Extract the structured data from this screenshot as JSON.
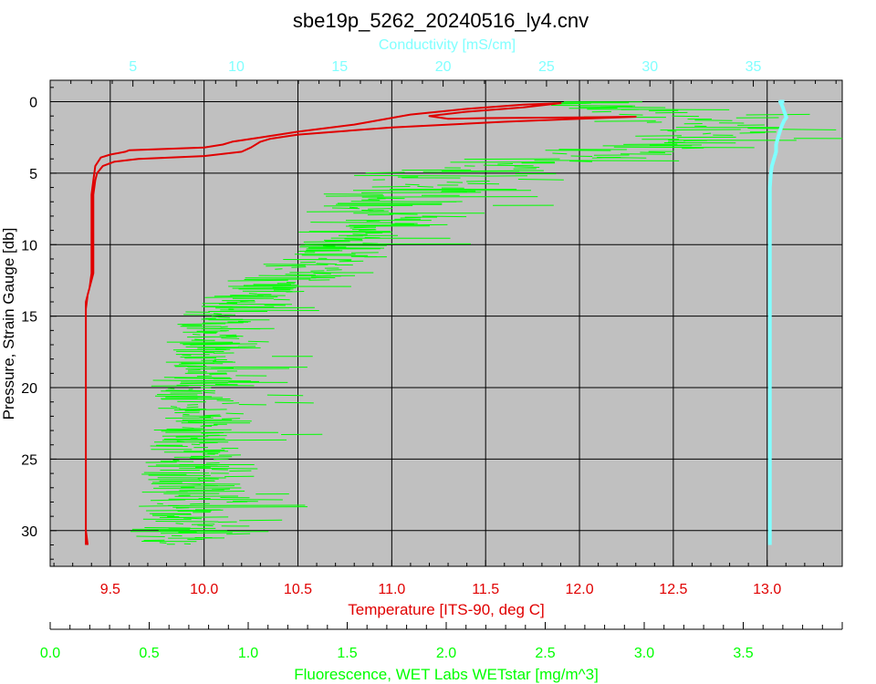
{
  "chart_data": {
    "type": "line",
    "title": "sbe19p_5262_20240516_ly4.cnv",
    "y_axis": {
      "label": "Pressure, Strain Gauge [db]",
      "range": [
        -1.5,
        32.5
      ],
      "inverted": true,
      "ticks": [
        0,
        5,
        10,
        15,
        20,
        25,
        30
      ],
      "tick_labels": [
        "0",
        "5",
        "10",
        "15",
        "20",
        "25",
        "30"
      ]
    },
    "axes": {
      "conductivity": {
        "label": "Conductivity [mS/cm]",
        "position": "top",
        "color": "#80ffff",
        "range": [
          1.0,
          39.3
        ],
        "ticks": [
          5,
          10,
          15,
          20,
          25,
          30,
          35
        ],
        "tick_labels": [
          "5",
          "10",
          "15",
          "20",
          "25",
          "30",
          "35"
        ]
      },
      "temperature": {
        "label": "Temperature [ITS-90, deg C]",
        "position": "bottom",
        "color": "#e00000",
        "range": [
          9.18,
          13.4
        ],
        "ticks": [
          9.5,
          10.0,
          10.5,
          11.0,
          11.5,
          12.0,
          12.5,
          13.0
        ],
        "tick_labels": [
          "9.5",
          "10.0",
          "10.5",
          "11.0",
          "11.5",
          "12.0",
          "12.5",
          "13.0"
        ]
      },
      "fluorescence": {
        "label": "Fluorescence, WET Labs WETstar [mg/m^3]",
        "position": "bottom-secondary",
        "color": "#00ff00",
        "range": [
          0.0,
          4.0
        ],
        "ticks": [
          0.0,
          0.5,
          1.0,
          1.5,
          2.0,
          2.5,
          3.0,
          3.5
        ],
        "tick_labels": [
          "0.0",
          "0.5",
          "1.0",
          "1.5",
          "2.0",
          "2.5",
          "3.0",
          "3.5"
        ]
      }
    },
    "grid": true,
    "series": [
      {
        "axis": "temperature",
        "color": "#e00000",
        "points": [
          [
            9.38,
            31.0
          ],
          [
            9.37,
            30.0
          ],
          [
            9.37,
            25.0
          ],
          [
            9.37,
            20.0
          ],
          [
            9.37,
            16.0
          ],
          [
            9.37,
            14.5
          ],
          [
            9.38,
            13.5
          ],
          [
            9.39,
            13.0
          ],
          [
            9.41,
            12.0
          ],
          [
            9.41,
            10.0
          ],
          [
            9.41,
            8.0
          ],
          [
            9.41,
            6.5
          ],
          [
            9.42,
            5.5
          ],
          [
            9.43,
            5.0
          ],
          [
            9.46,
            4.5
          ],
          [
            9.52,
            4.2
          ],
          [
            9.65,
            4.0
          ],
          [
            10.0,
            3.8
          ],
          [
            10.2,
            3.5
          ],
          [
            10.25,
            3.2
          ],
          [
            10.3,
            2.8
          ],
          [
            10.35,
            2.6
          ],
          [
            10.5,
            2.3
          ],
          [
            11.0,
            1.8
          ],
          [
            11.6,
            1.4
          ],
          [
            12.0,
            1.2
          ],
          [
            12.3,
            1.05
          ],
          [
            12.0,
            1.1
          ],
          [
            11.5,
            1.15
          ],
          [
            11.3,
            1.2
          ],
          [
            11.2,
            1.0
          ],
          [
            11.4,
            0.7
          ],
          [
            11.7,
            0.4
          ],
          [
            11.9,
            0.1
          ],
          [
            11.7,
            0.2
          ],
          [
            11.4,
            0.5
          ],
          [
            11.1,
            0.9
          ],
          [
            10.8,
            1.6
          ],
          [
            10.5,
            2.1
          ],
          [
            10.3,
            2.5
          ],
          [
            10.15,
            2.8
          ],
          [
            10.1,
            3.0
          ],
          [
            10.0,
            3.2
          ],
          [
            9.6,
            3.4
          ],
          [
            9.58,
            3.5
          ],
          [
            9.5,
            3.7
          ],
          [
            9.45,
            3.9
          ],
          [
            9.42,
            4.5
          ],
          [
            9.41,
            5.5
          ],
          [
            9.4,
            6.5
          ],
          [
            9.4,
            8.0
          ],
          [
            9.4,
            10.0
          ],
          [
            9.4,
            12.0
          ],
          [
            9.39,
            13.0
          ],
          [
            9.37,
            14.0
          ],
          [
            9.37,
            16.0
          ],
          [
            9.37,
            20.0
          ],
          [
            9.37,
            25.0
          ],
          [
            9.37,
            30.0
          ],
          [
            9.37,
            31.0
          ]
        ]
      },
      {
        "axis": "conductivity",
        "color": "#80ffff",
        "points": [
          [
            35.8,
            31.0
          ],
          [
            35.8,
            30.0
          ],
          [
            35.8,
            28.0
          ],
          [
            35.8,
            25.0
          ],
          [
            35.8,
            20.0
          ],
          [
            35.8,
            15.0
          ],
          [
            35.8,
            10.0
          ],
          [
            35.8,
            7.0
          ],
          [
            35.8,
            6.0
          ],
          [
            35.85,
            5.0
          ],
          [
            35.9,
            4.5
          ],
          [
            36.0,
            4.0
          ],
          [
            36.1,
            3.5
          ],
          [
            36.1,
            3.0
          ],
          [
            36.2,
            2.5
          ],
          [
            36.3,
            2.0
          ],
          [
            36.4,
            1.6
          ],
          [
            36.5,
            1.3
          ],
          [
            36.6,
            1.1
          ],
          [
            36.5,
            0.7
          ],
          [
            36.4,
            0.3
          ],
          [
            36.3,
            0.0
          ],
          [
            36.5,
            0.0
          ]
        ]
      },
      {
        "axis": "fluorescence",
        "color": "#00ff00",
        "profile": [
          [
            0.0,
            2.6,
            3.0,
            0.5
          ],
          [
            0.5,
            2.5,
            3.1,
            0.5
          ],
          [
            1.0,
            2.6,
            3.2,
            0.5
          ],
          [
            1.5,
            2.9,
            3.4,
            0.5
          ],
          [
            2.0,
            3.0,
            3.5,
            0.5
          ],
          [
            2.5,
            3.0,
            3.4,
            0.5
          ],
          [
            3.0,
            2.9,
            3.3,
            0.5
          ],
          [
            3.5,
            2.4,
            3.2,
            0.6
          ],
          [
            4.0,
            2.1,
            2.9,
            0.6
          ],
          [
            4.5,
            1.9,
            2.5,
            0.6
          ],
          [
            5.0,
            1.6,
            2.3,
            0.6
          ],
          [
            6.0,
            1.45,
            2.0,
            0.55
          ],
          [
            7.0,
            1.35,
            1.9,
            0.5
          ],
          [
            8.0,
            1.3,
            1.8,
            0.5
          ],
          [
            9.0,
            1.3,
            1.7,
            0.5
          ],
          [
            10.0,
            1.25,
            1.6,
            0.5
          ],
          [
            11.0,
            1.15,
            1.5,
            0.45
          ],
          [
            12.0,
            1.05,
            1.4,
            0.45
          ],
          [
            13.0,
            0.85,
            1.2,
            0.45
          ],
          [
            14.0,
            0.8,
            1.1,
            0.4
          ],
          [
            15.0,
            0.7,
            1.0,
            0.4
          ],
          [
            16.0,
            0.65,
            0.95,
            0.4
          ],
          [
            18.0,
            0.6,
            0.9,
            0.4
          ],
          [
            20.0,
            0.55,
            0.85,
            0.4
          ],
          [
            22.0,
            0.55,
            0.85,
            0.4
          ],
          [
            24.0,
            0.55,
            0.85,
            0.4
          ],
          [
            26.0,
            0.5,
            0.85,
            0.4
          ],
          [
            28.0,
            0.5,
            0.85,
            0.35
          ],
          [
            29.5,
            0.45,
            0.85,
            0.35
          ],
          [
            30.5,
            0.45,
            0.8,
            0.35
          ],
          [
            31.0,
            0.5,
            0.75,
            0.3
          ]
        ],
        "sample_step": 0.07,
        "seed": 20240516
      }
    ]
  }
}
